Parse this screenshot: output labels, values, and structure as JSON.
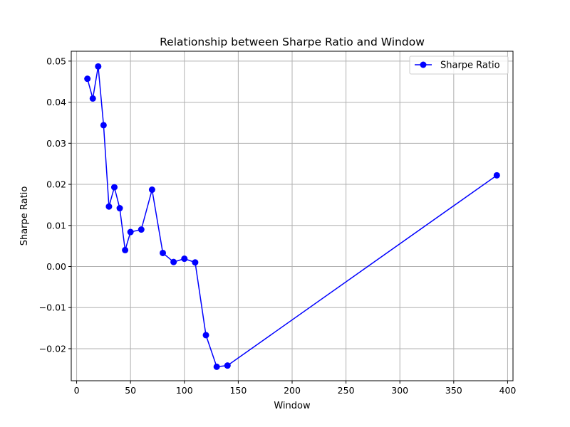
{
  "chart_data": {
    "type": "line",
    "title": "Relationship between Sharpe Ratio and Window",
    "xlabel": "Window",
    "ylabel": "Sharpe Ratio",
    "xlim": [
      -5,
      405
    ],
    "ylim": [
      -0.0278,
      0.0524
    ],
    "xticks": [
      0,
      50,
      100,
      150,
      200,
      250,
      300,
      350,
      400
    ],
    "xtick_labels": [
      "0",
      "50",
      "100",
      "150",
      "200",
      "250",
      "300",
      "350",
      "400"
    ],
    "yticks": [
      -0.02,
      -0.01,
      0.0,
      0.01,
      0.02,
      0.03,
      0.04,
      0.05
    ],
    "ytick_labels": [
      "−0.02",
      "−0.01",
      "0.00",
      "0.01",
      "0.02",
      "0.03",
      "0.04",
      "0.05"
    ],
    "grid": true,
    "legend": {
      "position": "top-right",
      "entries": [
        "Sharpe Ratio"
      ]
    },
    "series": [
      {
        "name": "Sharpe Ratio",
        "color": "#0000ff",
        "marker": "circle",
        "x": [
          10,
          15,
          20,
          25,
          30,
          35,
          40,
          45,
          50,
          60,
          70,
          80,
          90,
          100,
          110,
          120,
          130,
          140,
          390
        ],
        "y": [
          0.0457,
          0.0409,
          0.0487,
          0.0344,
          0.0146,
          0.0193,
          0.0142,
          0.004,
          0.0084,
          0.009,
          0.0187,
          0.0033,
          0.0011,
          0.0019,
          0.001,
          -0.0167,
          -0.0244,
          -0.0241,
          0.0222
        ]
      }
    ]
  }
}
